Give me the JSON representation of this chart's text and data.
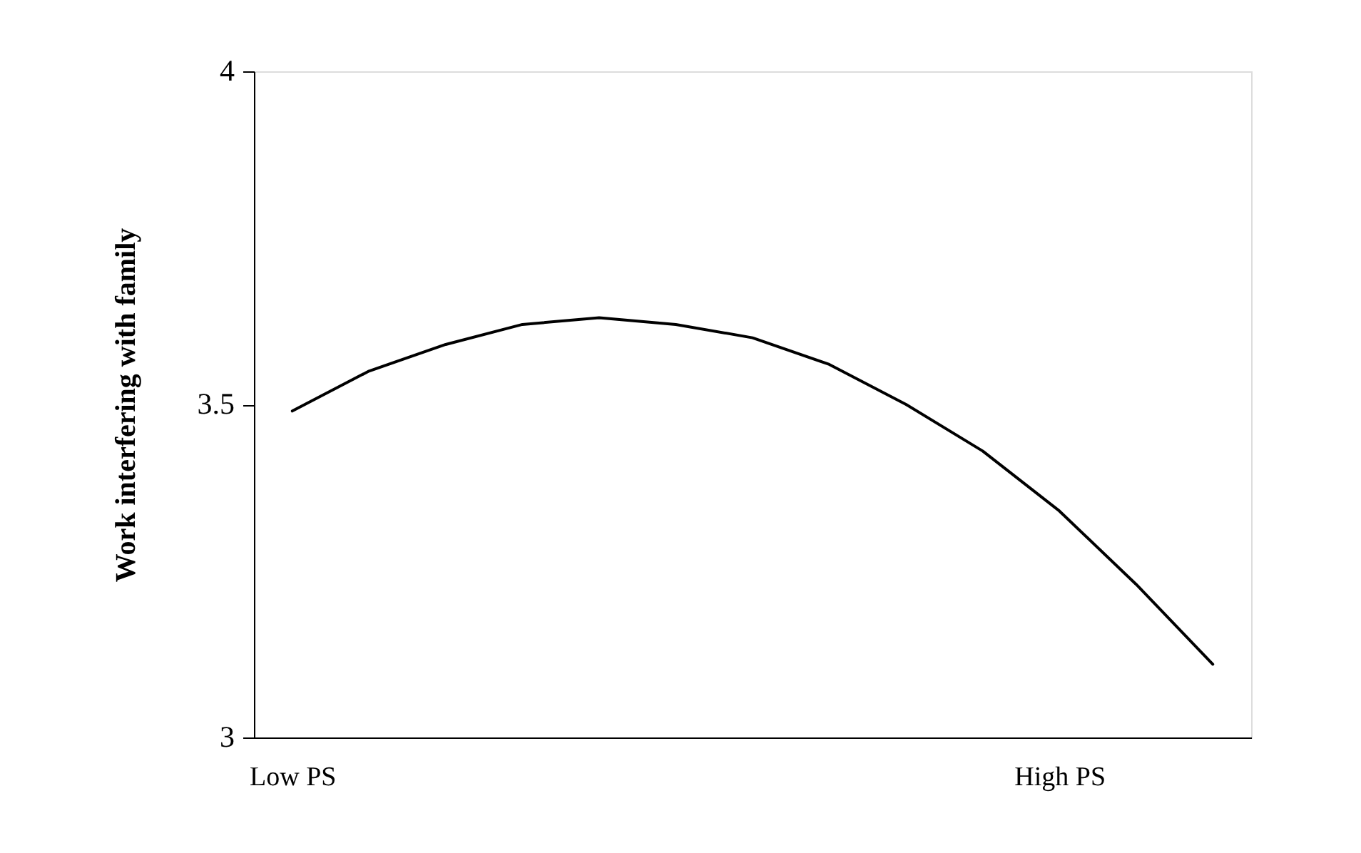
{
  "chart_data": {
    "type": "line",
    "ylabel": "Work interfering with family",
    "categories": [
      "Low PS",
      null,
      null,
      null,
      null,
      null,
      null,
      null,
      null,
      null,
      "High PS",
      null,
      null
    ],
    "series": [
      {
        "color": "#000000",
        "values": [
          3.49,
          3.55,
          3.59,
          3.62,
          3.63,
          3.62,
          3.6,
          3.56,
          3.5,
          3.43,
          3.34,
          3.23,
          3.11
        ]
      }
    ],
    "ylim": [
      3,
      4
    ],
    "yticks": [
      3,
      {
        "value": 3.5,
        "label": "3.5"
      },
      4
    ],
    "grid": false,
    "marker": "none",
    "line_style": "solid"
  }
}
